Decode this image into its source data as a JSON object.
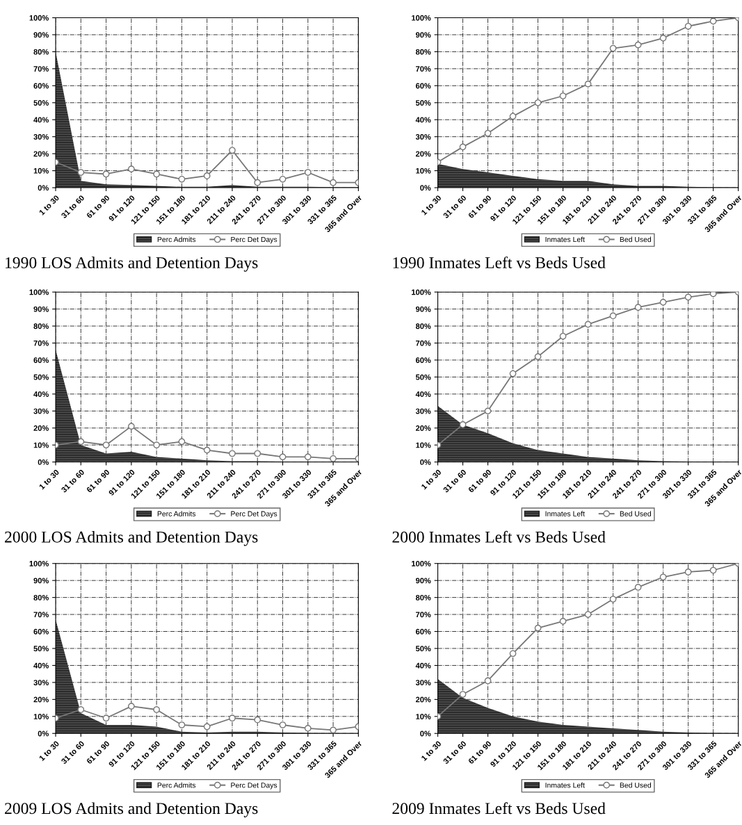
{
  "chart_data": [
    {
      "type": "area",
      "title": "1990 LOS Admits and Detention Days",
      "categories": [
        "1 to 30",
        "31 to 60",
        "61 to 90",
        "91 to 120",
        "121 to 150",
        "151 to 180",
        "181 to 210",
        "211 to 240",
        "241 to 270",
        "271 to 300",
        "301 to 330",
        "331 to 365",
        "365 and Over"
      ],
      "series": [
        {
          "name": "Perc Admits",
          "color": "#4a4a4a",
          "values": [
            80,
            4,
            2,
            1.5,
            1,
            0.5,
            0.5,
            1.5,
            0.5,
            0.5,
            0.5,
            0.3,
            0.3
          ]
        },
        {
          "name": "Perc Det Days",
          "type": "line",
          "marker": "circle",
          "color": "#777777",
          "values": [
            15,
            9,
            8,
            11,
            8,
            5,
            7,
            22,
            3,
            5,
            9,
            3,
            3
          ]
        }
      ],
      "ylim": [
        0,
        100
      ],
      "yticks": [
        {
          "value": 0,
          "label": "0%"
        },
        {
          "value": 10,
          "label": "10%"
        },
        {
          "value": 20,
          "label": "20%"
        },
        {
          "value": 30,
          "label": "30%"
        },
        {
          "value": 40,
          "label": "40%"
        },
        {
          "value": 50,
          "label": "50%"
        },
        {
          "value": 60,
          "label": "60%"
        },
        {
          "value": 70,
          "label": "70%"
        },
        {
          "value": 80,
          "label": "80%"
        },
        {
          "value": 90,
          "label": "90%"
        },
        {
          "value": 100,
          "label": "100%"
        }
      ],
      "grid": true,
      "legend": "bottom"
    },
    {
      "type": "area",
      "title": "1990 Inmates Left vs Beds Used",
      "categories": [
        "1 to 30",
        "31 to 60",
        "61 to 90",
        "91 to 120",
        "121 to 150",
        "151 to 180",
        "181 to 210",
        "211 to 240",
        "241 to 270",
        "271 to 300",
        "301 to 330",
        "331 to 365",
        "365 and Over"
      ],
      "series": [
        {
          "name": "Inmates Left",
          "color": "#4a4a4a",
          "values": [
            14,
            11,
            9,
            7,
            5,
            4,
            4,
            2,
            1,
            1,
            0.5,
            0.3,
            0.2
          ]
        },
        {
          "name": "Bed Used",
          "type": "line",
          "marker": "circle",
          "color": "#777777",
          "values": [
            15,
            24,
            32,
            42,
            50,
            54,
            61,
            82,
            84,
            88,
            95,
            98,
            100
          ]
        }
      ],
      "ylim": [
        0,
        100
      ],
      "yticks": [
        {
          "value": 0,
          "label": "0%"
        },
        {
          "value": 10,
          "label": "10%"
        },
        {
          "value": 20,
          "label": "20%"
        },
        {
          "value": 30,
          "label": "30%"
        },
        {
          "value": 40,
          "label": "40%"
        },
        {
          "value": 50,
          "label": "50%"
        },
        {
          "value": 60,
          "label": "60%"
        },
        {
          "value": 70,
          "label": "70%"
        },
        {
          "value": 80,
          "label": "80%"
        },
        {
          "value": 90,
          "label": "90%"
        },
        {
          "value": 100,
          "label": "100%"
        }
      ],
      "grid": true,
      "legend": "bottom"
    },
    {
      "type": "area",
      "title": "2000 LOS Admits and Detention Days",
      "categories": [
        "1 to 30",
        "31 to 60",
        "61 to 90",
        "91 to 120",
        "121 to 150",
        "151 to 180",
        "181 to 210",
        "211 to 240",
        "241 to 270",
        "271 to 300",
        "301 to 330",
        "331 to 365",
        "365 and Over"
      ],
      "series": [
        {
          "name": "Perc Admits",
          "color": "#4a4a4a",
          "values": [
            66,
            10,
            5,
            6,
            3,
            2,
            1,
            0.5,
            0.5,
            0.3,
            0.3,
            0.2,
            0.2
          ]
        },
        {
          "name": "Perc Det Days",
          "type": "line",
          "marker": "circle",
          "color": "#777777",
          "values": [
            10,
            12,
            10,
            21,
            10,
            12,
            7,
            5,
            5,
            3,
            3,
            2,
            2
          ]
        }
      ],
      "ylim": [
        0,
        100
      ],
      "yticks": [
        {
          "value": 0,
          "label": "0%"
        },
        {
          "value": 10,
          "label": "10%"
        },
        {
          "value": 20,
          "label": "20%"
        },
        {
          "value": 30,
          "label": "30%"
        },
        {
          "value": 40,
          "label": "40%"
        },
        {
          "value": 50,
          "label": "50%"
        },
        {
          "value": 60,
          "label": "60%"
        },
        {
          "value": 70,
          "label": "70%"
        },
        {
          "value": 80,
          "label": "80%"
        },
        {
          "value": 90,
          "label": "90%"
        },
        {
          "value": 100,
          "label": "100%"
        }
      ],
      "grid": true,
      "legend": "bottom"
    },
    {
      "type": "area",
      "title": "2000 Inmates Left vs Beds Used",
      "categories": [
        "1 to 30",
        "31 to 60",
        "61 to 90",
        "91 to 120",
        "121 to 150",
        "151 to 180",
        "181 to 210",
        "211 to 240",
        "241 to 270",
        "271 to 300",
        "301 to 330",
        "331 to 365",
        "365 and Over"
      ],
      "series": [
        {
          "name": "Inmates Left",
          "color": "#4a4a4a",
          "values": [
            33,
            22,
            17,
            11,
            7,
            5,
            3,
            2,
            1,
            0.5,
            0.3,
            0.2,
            0.1
          ]
        },
        {
          "name": "Bed Used",
          "type": "line",
          "marker": "circle",
          "color": "#777777",
          "values": [
            10,
            22,
            30,
            52,
            62,
            74,
            81,
            86,
            91,
            94,
            97,
            99,
            100
          ]
        }
      ],
      "ylim": [
        0,
        100
      ],
      "yticks": [
        {
          "value": 0,
          "label": "0%"
        },
        {
          "value": 10,
          "label": "10%"
        },
        {
          "value": 20,
          "label": "20%"
        },
        {
          "value": 30,
          "label": "30%"
        },
        {
          "value": 40,
          "label": "40%"
        },
        {
          "value": 50,
          "label": "50%"
        },
        {
          "value": 60,
          "label": "60%"
        },
        {
          "value": 70,
          "label": "70%"
        },
        {
          "value": 80,
          "label": "80%"
        },
        {
          "value": 90,
          "label": "90%"
        },
        {
          "value": 100,
          "label": "100%"
        }
      ],
      "grid": true,
      "legend": "bottom"
    },
    {
      "type": "area",
      "title": "2009 LOS Admits and Detention Days",
      "categories": [
        "1 to 30",
        "31 to 60",
        "61 to 90",
        "91 to 120",
        "121 to 150",
        "151 to 180",
        "181 to 210",
        "211 to 240",
        "241 to 270",
        "271 to 300",
        "301 to 330",
        "331 to 365",
        "365 and Over"
      ],
      "series": [
        {
          "name": "Perc Admits",
          "color": "#4a4a4a",
          "values": [
            67,
            12,
            5,
            5,
            4,
            1,
            0.5,
            1,
            1,
            0.5,
            0.3,
            0.2,
            0.2
          ]
        },
        {
          "name": "Perc Det Days",
          "type": "line",
          "marker": "circle",
          "color": "#777777",
          "values": [
            9,
            14,
            9,
            16,
            14,
            5,
            4,
            9,
            8,
            5,
            3,
            2,
            4
          ]
        }
      ],
      "ylim": [
        0,
        100
      ],
      "yticks": [
        {
          "value": 0,
          "label": "0%"
        },
        {
          "value": 10,
          "label": "10%"
        },
        {
          "value": 20,
          "label": "20%"
        },
        {
          "value": 30,
          "label": "30%"
        },
        {
          "value": 40,
          "label": "40%"
        },
        {
          "value": 50,
          "label": "50%"
        },
        {
          "value": 60,
          "label": "60%"
        },
        {
          "value": 70,
          "label": "70%"
        },
        {
          "value": 80,
          "label": "80%"
        },
        {
          "value": 90,
          "label": "90%"
        },
        {
          "value": 100,
          "label": "100%"
        }
      ],
      "grid": true,
      "legend": "bottom"
    },
    {
      "type": "area",
      "title": "2009 Inmates Left vs Beds Used",
      "categories": [
        "1 to 30",
        "31 to 60",
        "61 to 90",
        "91 to 120",
        "121 to 150",
        "151 to 180",
        "181 to 210",
        "211 to 240",
        "241 to 270",
        "271 to 300",
        "301 to 330",
        "331 to 365",
        "365 and Over"
      ],
      "series": [
        {
          "name": "Inmates Left",
          "color": "#4a4a4a",
          "values": [
            32,
            21,
            15,
            10,
            7,
            5,
            4,
            3,
            2,
            1,
            0.5,
            0.3,
            0.2
          ]
        },
        {
          "name": "Bed Used",
          "type": "line",
          "marker": "circle",
          "color": "#777777",
          "values": [
            10,
            23,
            31,
            47,
            62,
            66,
            70,
            79,
            86,
            92,
            95,
            96,
            100
          ]
        }
      ],
      "ylim": [
        0,
        100
      ],
      "yticks": [
        {
          "value": 0,
          "label": "0%"
        },
        {
          "value": 10,
          "label": "10%"
        },
        {
          "value": 20,
          "label": "20%"
        },
        {
          "value": 30,
          "label": "30%"
        },
        {
          "value": 40,
          "label": "40%"
        },
        {
          "value": 50,
          "label": "50%"
        },
        {
          "value": 60,
          "label": "60%"
        },
        {
          "value": 70,
          "label": "70%"
        },
        {
          "value": 80,
          "label": "80%"
        },
        {
          "value": 90,
          "label": "90%"
        },
        {
          "value": 100,
          "label": "100%"
        }
      ],
      "grid": true,
      "legend": "bottom"
    }
  ]
}
